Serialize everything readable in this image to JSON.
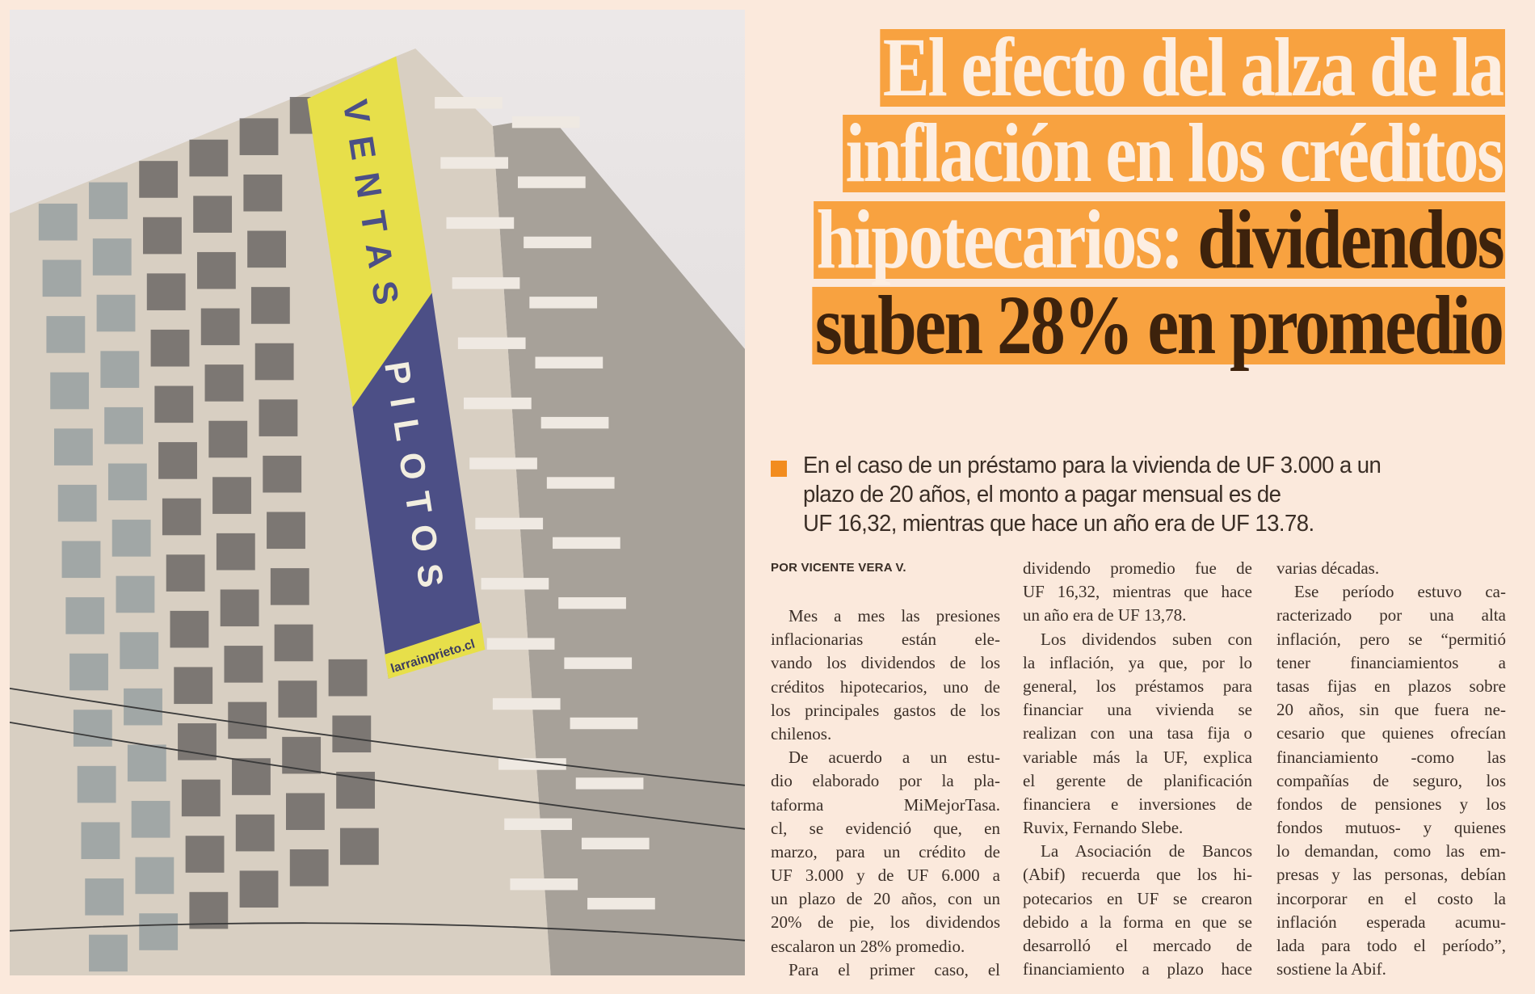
{
  "colors": {
    "background": "#fbe9dc",
    "headline_highlight": "#f8a240",
    "headline_light_text": "#fdeee1",
    "headline_dark_text": "#3d220c",
    "bullet": "#f28c1e",
    "banner_yellow": "#e7df4a",
    "banner_purple": "#4c4f86"
  },
  "photo": {
    "banner_top": "VENTAS",
    "banner_bottom": "PILOTOS",
    "banner_url": "larrainprieto.cl"
  },
  "headline": {
    "line1": "El efecto del alza de la",
    "line2": "inflación en los créditos",
    "line3_light": "hipotecarios: ",
    "line3_dark": "dividendos",
    "line4": "suben 28% en promedio"
  },
  "lead": {
    "icon": "square-bullet",
    "lines": [
      "En el caso de un préstamo para la vivienda de UF 3.000 a un",
      "plazo de 20 años, el monto a pagar mensual es de",
      "UF 16,32, mientras que hace un año era de UF 13.78."
    ]
  },
  "byline": "POR VICENTE VERA V.",
  "columns": [
    [
      [
        "Mes a mes las presiones",
        "inflacionarias están ele-",
        "vando los dividendos de los",
        "créditos hipotecarios, uno de",
        "los principales gastos de los",
        "chilenos."
      ],
      [
        "De acuerdo a un estu-",
        "dio elaborado por la pla-",
        "taforma MiMejorTasa.",
        "cl, se evidenció que, en",
        "marzo, para un crédito de",
        "UF 3.000 y de UF 6.000 a",
        "un plazo de 20 años, con un",
        "20% de pie, los dividendos",
        "escalaron un 28% promedio."
      ],
      [
        "Para el primer caso, el"
      ]
    ],
    [
      [
        "dividendo promedio fue de",
        "UF 16,32, mientras que hace",
        "un año era de UF 13,78."
      ],
      [
        "Los dividendos suben con",
        "la inflación, ya que, por lo",
        "general, los préstamos para",
        "financiar una vivienda se",
        "realizan con una tasa fija o",
        "variable más la UF, explica",
        "el gerente de planificación",
        "financiera e inversiones de",
        "Ruvix, Fernando Slebe."
      ],
      [
        "La Asociación de Bancos",
        "(Abif) recuerda que los hi-",
        "potecarios en UF se crearon",
        "debido a la forma en que se",
        "desarrolló el mercado de",
        "financiamiento a plazo hace"
      ]
    ],
    [
      [
        "varias décadas."
      ],
      [
        "Ese período estuvo ca-",
        "racterizado por una alta",
        "inflación, pero se “permitió",
        "tener financiamientos a",
        "tasas fijas en plazos sobre",
        "20 años, sin que fuera ne-",
        "cesario que quienes ofrecían",
        "financiamiento -como las",
        "compañías de seguro, los",
        "fondos de pensiones y los",
        "fondos mutuos- y quienes",
        "lo demandan, como las em-",
        "presas y las personas, debían",
        "incorporar en el costo la",
        "inflación esperada acumu-",
        "lada para todo el período”,",
        "sostiene la Abif."
      ]
    ]
  ]
}
